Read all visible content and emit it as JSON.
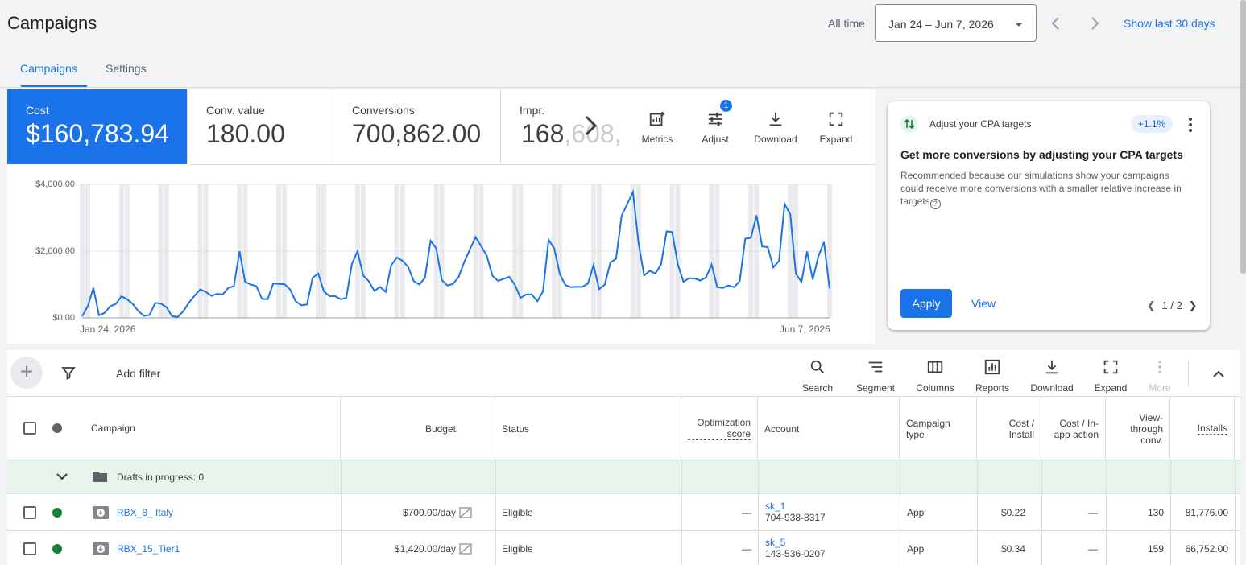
{
  "header": {
    "title": "Campaigns",
    "range_label": "All time",
    "date_range": "Jan 24 – Jun 7, 2026",
    "show_last": "Show last 30 days"
  },
  "tabs": [
    {
      "label": "Campaigns",
      "active": true
    },
    {
      "label": "Settings",
      "active": false
    }
  ],
  "metrics": [
    {
      "label": "Cost",
      "value": "$160,783.94"
    },
    {
      "label": "Conv. value",
      "value": "180.00"
    },
    {
      "label": "Conversions",
      "value": "700,862.00"
    },
    {
      "label": "Impr.",
      "value": "168,608,"
    }
  ],
  "overview_tools": [
    {
      "label": "Metrics",
      "icon": "metrics-add-icon"
    },
    {
      "label": "Adjust",
      "icon": "tune-icon",
      "badge": "1"
    },
    {
      "label": "Download",
      "icon": "download-icon"
    },
    {
      "label": "Expand",
      "icon": "fullscreen-icon"
    }
  ],
  "chart_data": {
    "type": "line",
    "x_start": "Jan 24, 2026",
    "x_end": "Jun 7, 2026",
    "y_ticks": [
      "$4,000.00",
      "$2,000.00",
      "$0.00"
    ],
    "ylim": [
      0,
      4000
    ],
    "series": [
      {
        "name": "Cost",
        "color": "#1a73e8",
        "values": [
          50,
          350,
          900,
          80,
          150,
          350,
          420,
          650,
          560,
          420,
          200,
          60,
          90,
          450,
          430,
          320,
          50,
          30,
          200,
          460,
          660,
          850,
          780,
          660,
          720,
          700,
          900,
          950,
          2000,
          1080,
          1000,
          950,
          570,
          560,
          1030,
          1020,
          1010,
          850,
          500,
          380,
          400,
          1200,
          1330,
          800,
          650,
          650,
          560,
          600,
          1620,
          2000,
          1270,
          1100,
          810,
          930,
          780,
          1580,
          1810,
          1710,
          1530,
          1100,
          1000,
          1200,
          2310,
          2080,
          1130,
          970,
          1020,
          1230,
          1680,
          2050,
          2420,
          2150,
          1860,
          1260,
          1110,
          1170,
          1230,
          990,
          600,
          700,
          700,
          500,
          800,
          2340,
          2080,
          1310,
          980,
          920,
          930,
          930,
          1030,
          1580,
          860,
          1000,
          1660,
          1770,
          3060,
          3410,
          3770,
          2240,
          1270,
          1410,
          1330,
          1600,
          2590,
          2570,
          1600,
          1080,
          1190,
          1180,
          1120,
          1210,
          1600,
          920,
          900,
          970,
          920,
          1100,
          2370,
          2400,
          3070,
          2140,
          2120,
          1510,
          1710,
          3410,
          3100,
          1320,
          1080,
          1990,
          1150,
          1840,
          2270,
          880
        ]
      }
    ]
  },
  "recommendation": {
    "heading": "Adjust your CPA targets",
    "badge": "+1.1%",
    "title": "Get more conversions by adjusting your CPA targets",
    "description": "Recommended because our simulations show your campaigns could receive more conversions with a smaller relative increase in targets",
    "apply": "Apply",
    "view": "View",
    "pager": "1 / 2"
  },
  "table_toolbar": {
    "add_filter": "Add filter",
    "tools": [
      {
        "label": "Search",
        "icon": "search-icon"
      },
      {
        "label": "Segment",
        "icon": "segment-icon"
      },
      {
        "label": "Columns",
        "icon": "columns-icon"
      },
      {
        "label": "Reports",
        "icon": "reports-icon"
      },
      {
        "label": "Download",
        "icon": "download-icon"
      },
      {
        "label": "Expand",
        "icon": "fullscreen-icon"
      },
      {
        "label": "More",
        "icon": "more-vert-icon",
        "disabled": true
      }
    ]
  },
  "columns": {
    "campaign": "Campaign",
    "budget": "Budget",
    "status": "Status",
    "optimization_score": "Optimization score",
    "account": "Account",
    "campaign_type": "Campaign type",
    "cost_install": "Cost / Install",
    "cost_inapp": "Cost / In-app action",
    "view_through": "View-through conv.",
    "installs": "Installs"
  },
  "drafts": {
    "label": "Drafts in progress: 0"
  },
  "rows": [
    {
      "name": "RBX_8_ Italy",
      "budget": "$700.00/day",
      "status": "Eligible",
      "opt": "—",
      "account": "sk_1",
      "account_id": "704-938-8317",
      "type": "App",
      "cost_install": "$0.22",
      "cost_inapp": "—",
      "view_through": "130",
      "installs": "81,776.00"
    },
    {
      "name": "RBX_15_Tier1",
      "budget": "$1,420.00/day",
      "status": "Eligible",
      "opt": "—",
      "account": "sk_5",
      "account_id": "143-536-0207",
      "type": "App",
      "cost_install": "$0.34",
      "cost_inapp": "—",
      "view_through": "159",
      "installs": "66,752.00"
    }
  ]
}
